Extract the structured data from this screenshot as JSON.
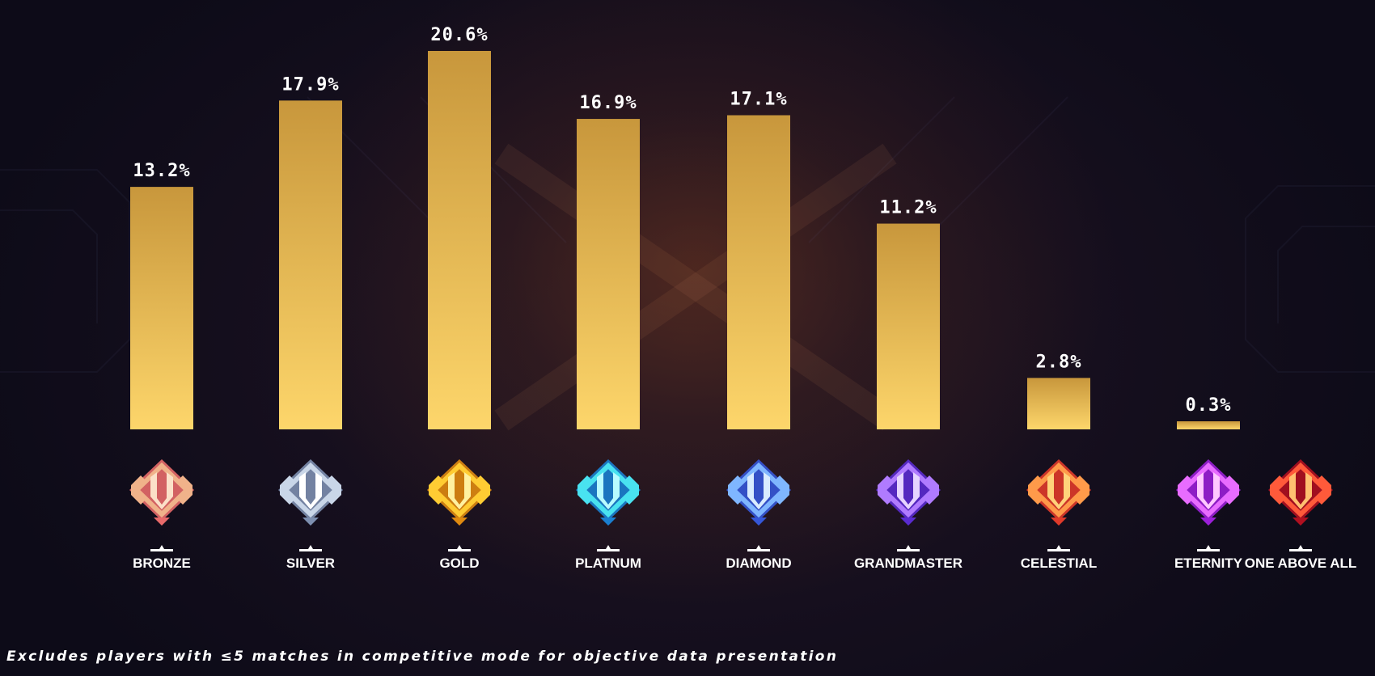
{
  "chart_data": {
    "type": "bar",
    "categories": [
      "BRONZE",
      "SILVER",
      "GOLD",
      "PLATNUM",
      "DIAMOND",
      "GRANDMASTER",
      "CELESTIAL",
      "ETERNITY",
      "ONE ABOVE ALL"
    ],
    "values": [
      13.2,
      17.9,
      20.6,
      16.9,
      17.1,
      11.2,
      2.8,
      0.3,
      null
    ],
    "data_labels": [
      "13.2%",
      "17.9%",
      "20.6%",
      "16.9%",
      "17.1%",
      "11.2%",
      "2.8%",
      "0.3%",
      ""
    ],
    "bar_span_note": "0.3%",
    "ylim": [
      0,
      22
    ],
    "grid": false,
    "bar_gradient": [
      "#c8973c",
      "#fdd66b"
    ],
    "icon_colors": {
      "BRONZE": [
        "#f0b28a",
        "#e86a6a",
        "#fbe0c8"
      ],
      "SILVER": [
        "#c9d6e8",
        "#7d8fb0",
        "#ffffff"
      ],
      "GOLD": [
        "#ffcc33",
        "#e08a10",
        "#fff1a0"
      ],
      "PLATNUM": [
        "#49e2f0",
        "#1a7fd0",
        "#b8fbff"
      ],
      "DIAMOND": [
        "#7fb6ff",
        "#3557d8",
        "#d9ecff"
      ],
      "GRANDMASTER": [
        "#b07bff",
        "#5a2bd0",
        "#e6d4ff"
      ],
      "CELESTIAL": [
        "#ff9a4a",
        "#e03a2a",
        "#ffd27a"
      ],
      "ETERNITY": [
        "#e86cff",
        "#9b1fd8",
        "#ffc8ff"
      ],
      "ONE ABOVE ALL": [
        "#ff5a3a",
        "#b01020",
        "#ffc070"
      ]
    },
    "icons": [
      "bronze-rank-icon",
      "silver-rank-icon",
      "gold-rank-icon",
      "platinum-rank-icon",
      "diamond-rank-icon",
      "grandmaster-rank-icon",
      "celestial-rank-icon",
      "eternity-rank-icon",
      "one-above-all-rank-icon"
    ]
  },
  "footnote": "Excludes players with ≤5 matches in competitive mode for objective data presentation"
}
